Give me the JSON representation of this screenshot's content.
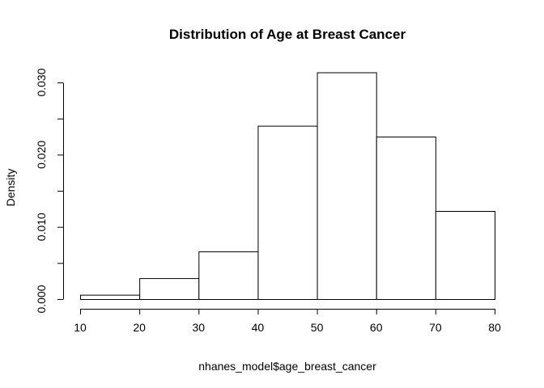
{
  "chart_data": {
    "type": "bar",
    "title": "Distribution of Age at Breast Cancer",
    "xlabel": "nhanes_model$age_breast_cancer",
    "ylabel": "Density",
    "bins": [
      {
        "from": 10,
        "to": 20,
        "density": 0.0006
      },
      {
        "from": 20,
        "to": 30,
        "density": 0.0029
      },
      {
        "from": 30,
        "to": 40,
        "density": 0.0066
      },
      {
        "from": 40,
        "to": 50,
        "density": 0.024
      },
      {
        "from": 50,
        "to": 60,
        "density": 0.0314
      },
      {
        "from": 60,
        "to": 70,
        "density": 0.0225
      },
      {
        "from": 70,
        "to": 80,
        "density": 0.0122
      }
    ],
    "xlim": [
      10,
      80
    ],
    "ylim": [
      0,
      0.03
    ],
    "x_ticks": [
      "10",
      "20",
      "30",
      "40",
      "50",
      "60",
      "70",
      "80"
    ],
    "y_ticks": [
      "0.000",
      "0.010",
      "0.020",
      "0.030"
    ],
    "y_minor_ticks": [
      0.005,
      0.015,
      0.025
    ],
    "grid": false
  }
}
